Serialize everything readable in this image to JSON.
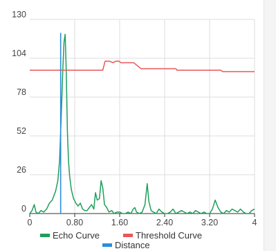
{
  "chart_data": {
    "type": "line",
    "title": "",
    "xlabel": "",
    "ylabel": "",
    "xlim": [
      0,
      4
    ],
    "ylim": [
      0,
      130
    ],
    "x_ticks": [
      "0",
      "0.80",
      "1.60",
      "2.40",
      "3.20",
      "4"
    ],
    "y_ticks": [
      "0",
      "26",
      "52",
      "78",
      "104",
      "130"
    ],
    "grid": "vertical and horizontal",
    "legend_position": "bottom",
    "series": [
      {
        "name": "Echo Curve",
        "color": "#1e9e5a",
        "points": [
          [
            0,
            0
          ],
          [
            0.04,
            2
          ],
          [
            0.08,
            6
          ],
          [
            0.11,
            1
          ],
          [
            0.15,
            0
          ],
          [
            0.2,
            2
          ],
          [
            0.25,
            1
          ],
          [
            0.3,
            3
          ],
          [
            0.35,
            7
          ],
          [
            0.4,
            9
          ],
          [
            0.46,
            15
          ],
          [
            0.5,
            22
          ],
          [
            0.53,
            35
          ],
          [
            0.56,
            65
          ],
          [
            0.59,
            98
          ],
          [
            0.61,
            115
          ],
          [
            0.63,
            120
          ],
          [
            0.65,
            95
          ],
          [
            0.67,
            55
          ],
          [
            0.69,
            35
          ],
          [
            0.71,
            25
          ],
          [
            0.74,
            16
          ],
          [
            0.78,
            10
          ],
          [
            0.82,
            7
          ],
          [
            0.86,
            5
          ],
          [
            0.9,
            7
          ],
          [
            0.94,
            3
          ],
          [
            0.98,
            2
          ],
          [
            1.02,
            2
          ],
          [
            1.06,
            4
          ],
          [
            1.1,
            6
          ],
          [
            1.14,
            3
          ],
          [
            1.17,
            14
          ],
          [
            1.2,
            9
          ],
          [
            1.24,
            10
          ],
          [
            1.27,
            22
          ],
          [
            1.3,
            17
          ],
          [
            1.33,
            6
          ],
          [
            1.37,
            4
          ],
          [
            1.41,
            1
          ],
          [
            1.46,
            2
          ],
          [
            1.5,
            0
          ],
          [
            1.55,
            1
          ],
          [
            1.6,
            1
          ],
          [
            1.65,
            0
          ],
          [
            1.7,
            0
          ],
          [
            1.75,
            1
          ],
          [
            1.8,
            0
          ],
          [
            1.84,
            3
          ],
          [
            1.87,
            4
          ],
          [
            1.9,
            1
          ],
          [
            1.95,
            0
          ],
          [
            2.0,
            1
          ],
          [
            2.05,
            6
          ],
          [
            2.09,
            20
          ],
          [
            2.12,
            8
          ],
          [
            2.16,
            2
          ],
          [
            2.2,
            1
          ],
          [
            2.25,
            0
          ],
          [
            2.3,
            3
          ],
          [
            2.35,
            1
          ],
          [
            2.4,
            0
          ],
          [
            2.45,
            0
          ],
          [
            2.5,
            1
          ],
          [
            2.55,
            3
          ],
          [
            2.6,
            0
          ],
          [
            2.65,
            1
          ],
          [
            2.7,
            2
          ],
          [
            2.75,
            1
          ],
          [
            2.8,
            0
          ],
          [
            2.85,
            1
          ],
          [
            2.9,
            0
          ],
          [
            2.95,
            2
          ],
          [
            3.0,
            1
          ],
          [
            3.05,
            0
          ],
          [
            3.1,
            1
          ],
          [
            3.15,
            0
          ],
          [
            3.2,
            0
          ],
          [
            3.25,
            3
          ],
          [
            3.3,
            9
          ],
          [
            3.35,
            4
          ],
          [
            3.4,
            1
          ],
          [
            3.45,
            0
          ],
          [
            3.5,
            2
          ],
          [
            3.55,
            1
          ],
          [
            3.6,
            3
          ],
          [
            3.65,
            2
          ],
          [
            3.7,
            1
          ],
          [
            3.75,
            3
          ],
          [
            3.8,
            1
          ],
          [
            3.85,
            0
          ],
          [
            3.9,
            0
          ],
          [
            3.95,
            2
          ],
          [
            4.0,
            3
          ]
        ]
      },
      {
        "name": "Threshold Curve",
        "color": "#e8585a",
        "points": [
          [
            0,
            96
          ],
          [
            1.3,
            96
          ],
          [
            1.34,
            102
          ],
          [
            1.42,
            102
          ],
          [
            1.48,
            101
          ],
          [
            1.53,
            102
          ],
          [
            1.59,
            102
          ],
          [
            1.62,
            101
          ],
          [
            1.85,
            101
          ],
          [
            1.98,
            97
          ],
          [
            2.6,
            97
          ],
          [
            2.62,
            96
          ],
          [
            3.4,
            96
          ],
          [
            3.43,
            95
          ],
          [
            4.0,
            95
          ]
        ]
      },
      {
        "name": "Distance",
        "color": "#2a8de0",
        "points": [
          [
            0.55,
            0
          ],
          [
            0.55,
            121
          ]
        ]
      }
    ]
  }
}
